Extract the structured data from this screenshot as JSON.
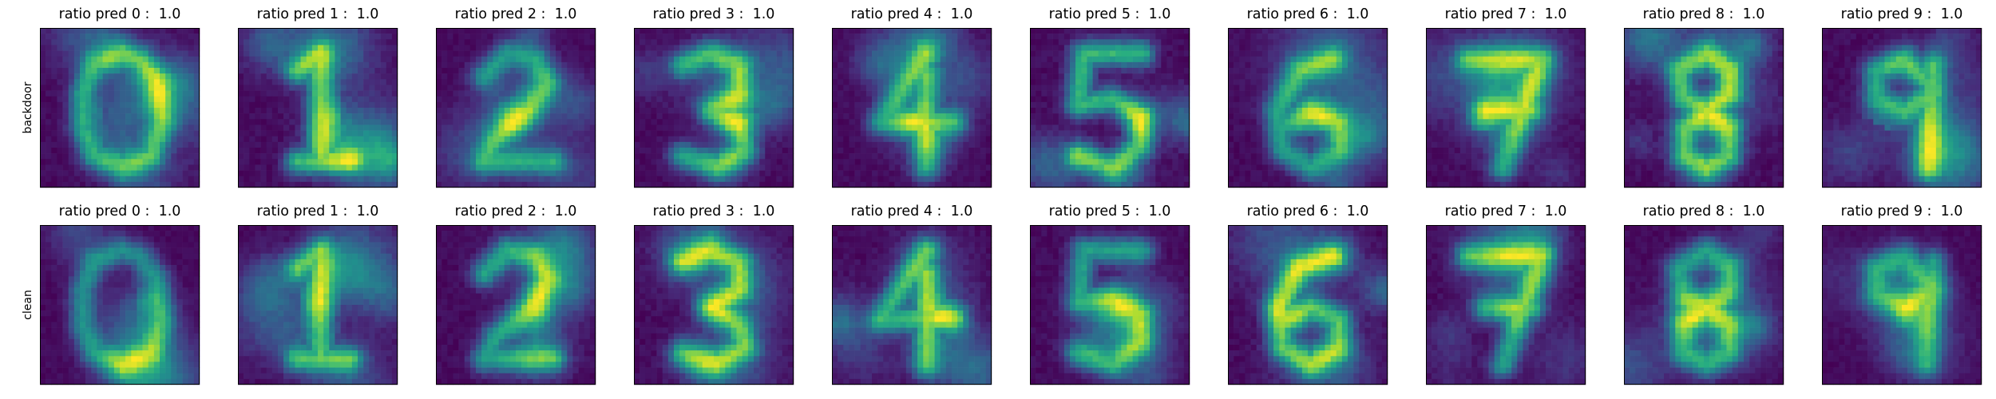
{
  "chart_data": {
    "type": "heatmap",
    "colormap": "viridis",
    "grid_size": [
      28,
      28
    ],
    "rows": [
      {
        "label": "backdoor",
        "panels": [
          {
            "title_prefix": "ratio pred",
            "digit": 0,
            "ratio": "1.0"
          },
          {
            "title_prefix": "ratio pred",
            "digit": 1,
            "ratio": "1.0"
          },
          {
            "title_prefix": "ratio pred",
            "digit": 2,
            "ratio": "1.0"
          },
          {
            "title_prefix": "ratio pred",
            "digit": 3,
            "ratio": "1.0"
          },
          {
            "title_prefix": "ratio pred",
            "digit": 4,
            "ratio": "1.0"
          },
          {
            "title_prefix": "ratio pred",
            "digit": 5,
            "ratio": "1.0"
          },
          {
            "title_prefix": "ratio pred",
            "digit": 6,
            "ratio": "1.0"
          },
          {
            "title_prefix": "ratio pred",
            "digit": 7,
            "ratio": "1.0"
          },
          {
            "title_prefix": "ratio pred",
            "digit": 8,
            "ratio": "1.0"
          },
          {
            "title_prefix": "ratio pred",
            "digit": 9,
            "ratio": "1.0"
          }
        ]
      },
      {
        "label": "clean",
        "panels": [
          {
            "title_prefix": "ratio pred",
            "digit": 0,
            "ratio": "1.0"
          },
          {
            "title_prefix": "ratio pred",
            "digit": 1,
            "ratio": "1.0"
          },
          {
            "title_prefix": "ratio pred",
            "digit": 2,
            "ratio": "1.0"
          },
          {
            "title_prefix": "ratio pred",
            "digit": 3,
            "ratio": "1.0"
          },
          {
            "title_prefix": "ratio pred",
            "digit": 4,
            "ratio": "1.0"
          },
          {
            "title_prefix": "ratio pred",
            "digit": 5,
            "ratio": "1.0"
          },
          {
            "title_prefix": "ratio pred",
            "digit": 6,
            "ratio": "1.0"
          },
          {
            "title_prefix": "ratio pred",
            "digit": 7,
            "ratio": "1.0"
          },
          {
            "title_prefix": "ratio pred",
            "digit": 8,
            "ratio": "1.0"
          },
          {
            "title_prefix": "ratio pred",
            "digit": 9,
            "ratio": "1.0"
          }
        ]
      }
    ],
    "axes_ticks": false,
    "grid": false
  }
}
